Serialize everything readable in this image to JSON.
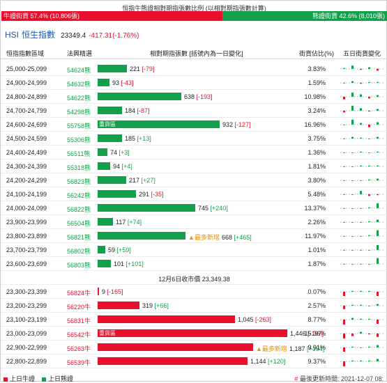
{
  "ratio": {
    "title": "恒指牛熊證相對期指張數比例 (以相對期指張數計算)",
    "bull_label": "牛證街貨 57.4% (10,806張)",
    "bear_label": "熊證街貨 42.6% (8,010張)",
    "bull_pct": 57.4,
    "bear_pct": 42.6
  },
  "index": {
    "code": "HSI",
    "name": "恒生指數",
    "value": "23349.4",
    "change": "-417.31(-1.76%)"
  },
  "headers": {
    "range": "恒指指數區域",
    "code": "法興精選",
    "contracts": "相對期指張數 [括號內為一日變化]",
    "pct": "街貨佔比(%)",
    "five_day": "五日街貨變化"
  },
  "bear_rows": [
    {
      "range": "25,000-25,099",
      "code": "54624熊",
      "num": "221",
      "chg": "[-79]",
      "up": false,
      "pct": "3.83%",
      "value": 221,
      "tag": "",
      "most": "",
      "spark": [
        1,
        4,
        -1,
        2,
        -2
      ]
    },
    {
      "range": "24,900-24,999",
      "code": "54632熊",
      "num": "93",
      "chg": "[-43]",
      "up": false,
      "pct": "1.59%",
      "value": 93,
      "tag": "",
      "most": "",
      "spark": [
        0,
        2,
        -1,
        1,
        1
      ]
    },
    {
      "range": "24,800-24,899",
      "code": "54622熊",
      "num": "638",
      "chg": "[-193]",
      "up": false,
      "pct": "10.98%",
      "value": 638,
      "tag": "",
      "most": "",
      "spark": [
        -3,
        5,
        3,
        -2,
        2
      ]
    },
    {
      "range": "24,700-24,799",
      "code": "54298熊",
      "num": "184",
      "chg": "[-87]",
      "up": false,
      "pct": "3.24%",
      "value": 184,
      "tag": "",
      "most": "",
      "spark": [
        -2,
        6,
        3,
        -1,
        2
      ]
    },
    {
      "range": "24,600-24,699",
      "code": "55758熊",
      "num": "932",
      "chg": "[-127]",
      "up": false,
      "pct": "16.96%",
      "value": 932,
      "tag": "重貨區",
      "most": "",
      "spark": [
        0,
        6,
        2,
        -3,
        3
      ]
    },
    {
      "range": "24,500-24,599",
      "code": "55306熊",
      "num": "185",
      "chg": "[+13]",
      "up": true,
      "pct": "3.75%",
      "value": 185,
      "tag": "",
      "most": "",
      "spark": [
        0,
        2,
        1,
        0,
        2
      ]
    },
    {
      "range": "24,400-24,499",
      "code": "56511熊",
      "num": "74",
      "chg": "[+3]",
      "up": true,
      "pct": "1.36%",
      "value": 74,
      "tag": "",
      "most": "",
      "spark": [
        0,
        0,
        1,
        0,
        1
      ]
    },
    {
      "range": "24,300-24,399",
      "code": "55318熊",
      "num": "94",
      "chg": "[+4]",
      "up": true,
      "pct": "1.81%",
      "value": 94,
      "tag": "",
      "most": "",
      "spark": [
        0,
        0,
        1,
        1,
        1
      ]
    },
    {
      "range": "24,200-24,299",
      "code": "56823熊",
      "num": "217",
      "chg": "[+27]",
      "up": true,
      "pct": "3.80%",
      "value": 217,
      "tag": "",
      "most": "",
      "spark": [
        0,
        0,
        0,
        1,
        2
      ]
    },
    {
      "range": "24,100-24,199",
      "code": "56242熊",
      "num": "291",
      "chg": "[-35]",
      "up": false,
      "pct": "5.48%",
      "value": 291,
      "tag": "",
      "most": "",
      "spark": [
        0,
        0,
        4,
        -2,
        -1
      ]
    },
    {
      "range": "24,000-24,099",
      "code": "56822熊",
      "num": "745",
      "chg": "[+240]",
      "up": true,
      "pct": "13.37%",
      "value": 745,
      "tag": "",
      "most": "",
      "spark": [
        0,
        0,
        0,
        1,
        6
      ]
    },
    {
      "range": "23,900-23,999",
      "code": "56504熊",
      "num": "117",
      "chg": "[+74]",
      "up": true,
      "pct": "2.26%",
      "value": 117,
      "tag": "",
      "most": "",
      "spark": [
        0,
        0,
        0,
        1,
        3
      ]
    },
    {
      "range": "23,800-23,899",
      "code": "56821熊",
      "num": "668",
      "chg": "[+465]",
      "up": true,
      "pct": "11.97%",
      "value": 668,
      "tag": "",
      "most": "最多新增",
      "spark": [
        0,
        0,
        0,
        1,
        7
      ]
    },
    {
      "range": "23,700-23,799",
      "code": "56802熊",
      "num": "59",
      "chg": "[+59]",
      "up": true,
      "pct": "1.01%",
      "value": 59,
      "tag": "",
      "most": "",
      "spark": [
        0,
        0,
        0,
        0,
        6
      ]
    },
    {
      "range": "23,600-23,699",
      "code": "56803熊",
      "num": "101",
      "chg": "[+101]",
      "up": true,
      "pct": "1.87%",
      "value": 101,
      "tag": "",
      "most": "",
      "spark": [
        0,
        0,
        0,
        0,
        7
      ]
    }
  ],
  "close_line": "12月6日收市價 23,349.38",
  "bull_rows": [
    {
      "range": "23,300-23,399",
      "code": "56824牛",
      "num": "9",
      "chg": "[-165]",
      "up": false,
      "pct": "0.07%",
      "value": 9,
      "tag": "",
      "most": "",
      "spark": [
        -5,
        1,
        1,
        1,
        -5
      ]
    },
    {
      "range": "23,200-23,299",
      "code": "56220牛",
      "num": "319",
      "chg": "[+66]",
      "up": true,
      "pct": "2.57%",
      "value": 319,
      "tag": "",
      "most": "",
      "spark": [
        -4,
        1,
        1,
        0,
        2
      ]
    },
    {
      "range": "23,100-23,199",
      "code": "56831牛",
      "num": "1,045",
      "chg": "[-263]",
      "up": false,
      "pct": "8.77%",
      "value": 1045,
      "tag": "",
      "most": "",
      "spark": [
        -6,
        2,
        1,
        1,
        -5
      ]
    },
    {
      "range": "23,000-23,099",
      "code": "56542牛",
      "num": "1,446",
      "chg": "[-197]",
      "up": false,
      "pct": "15.36%",
      "value": 1446,
      "tag": "重貨區",
      "most": "",
      "spark": [
        -6,
        -3,
        2,
        -1,
        -4
      ]
    },
    {
      "range": "22,900-22,999",
      "code": "56263牛",
      "num": "1,187",
      "chg": "[+164]",
      "up": true,
      "pct": "9.91%",
      "value": 1187,
      "tag": "",
      "most": "最多新增",
      "spark": [
        -5,
        1,
        0,
        1,
        3
      ]
    },
    {
      "range": "22,800-22,899",
      "code": "56539牛",
      "num": "1,144",
      "chg": "[+120]",
      "up": true,
      "pct": "9.37%",
      "value": 1144,
      "tag": "",
      "most": "",
      "spark": [
        -6,
        1,
        1,
        1,
        3
      ]
    }
  ],
  "legend": {
    "bull": "上日牛證",
    "bear": "上日熊證"
  },
  "footnote": {
    "hash": "#",
    "text": "最後更新時間: 2021-12-07 08:"
  },
  "colors": {
    "bull": "#e8102c",
    "bear": "#13a04a",
    "most": "#f08a00"
  }
}
